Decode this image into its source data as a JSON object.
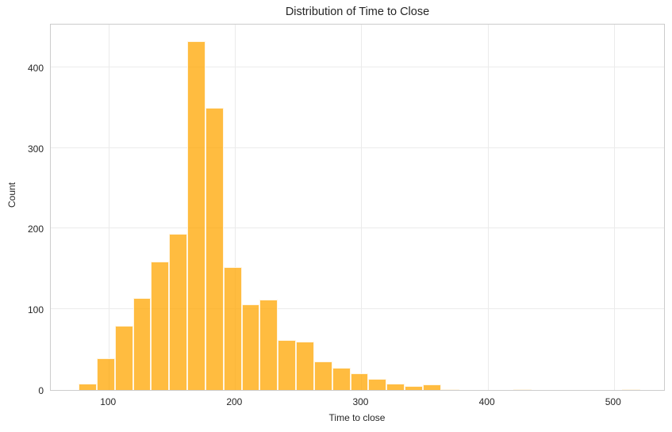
{
  "chart_data": {
    "type": "bar",
    "subtype": "histogram",
    "title": "Distribution of Time to Close",
    "xlabel": "Time to close",
    "ylabel": "Count",
    "xlim": [
      54,
      541
    ],
    "ylim": [
      0,
      455
    ],
    "xticks": [
      100,
      200,
      300,
      400,
      500
    ],
    "yticks": [
      0,
      100,
      200,
      300,
      400
    ],
    "grid": true,
    "bar_color": "#FFA500",
    "bar_alpha": 0.75,
    "bin_start": 76,
    "bin_width": 14.35,
    "bin_edges_approx": [
      76,
      90.4,
      104.7,
      119.1,
      133.4,
      147.8,
      162.1,
      176.5,
      190.8,
      205.2,
      219.5,
      233.9,
      248.2,
      262.6,
      276.9,
      291.3,
      305.6,
      320,
      334.3,
      348.7,
      363,
      377.4,
      391.7,
      406.1,
      420.4,
      434.8,
      449.1,
      463.5,
      477.8,
      492.2,
      506.5,
      520.9
    ],
    "values": [
      8,
      39,
      80,
      114,
      159,
      194,
      432,
      350,
      152,
      106,
      112,
      62,
      60,
      35,
      28,
      21,
      14,
      8,
      5,
      7,
      1,
      0,
      0,
      0,
      1,
      0,
      0,
      0,
      0,
      0,
      1
    ]
  }
}
